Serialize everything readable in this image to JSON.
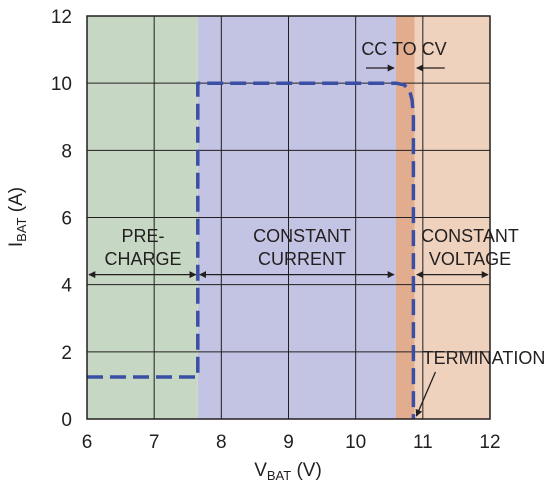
{
  "chart_data": {
    "type": "line",
    "xlabel": {
      "main": "V",
      "sub": "BAT",
      "rest": " (V)"
    },
    "ylabel": {
      "main": "I",
      "sub": "BAT",
      "rest": " (A)"
    },
    "xlim": [
      6,
      12
    ],
    "ylim": [
      0,
      12
    ],
    "x_ticks": [
      "6",
      "7",
      "8",
      "9",
      "10",
      "11",
      "12"
    ],
    "y_ticks": [
      "0",
      "2",
      "4",
      "6",
      "8",
      "10",
      "12"
    ],
    "grid": true,
    "regions": [
      {
        "id": "precharge",
        "x_from": 6.0,
        "x_to": 7.65,
        "color": "#c6d8c3"
      },
      {
        "id": "constant-current",
        "x_from": 7.65,
        "x_to": 10.6,
        "color": "#c3c3e3"
      },
      {
        "id": "cc-to-cv",
        "x_from": 10.6,
        "x_to": 10.88,
        "color": "#e2ad8f"
      },
      {
        "id": "constant-voltage",
        "x_from": 10.88,
        "x_to": 12.0,
        "color": "#eed2bd"
      }
    ],
    "series": [
      {
        "color": "#3a4fa3",
        "style": "dashed",
        "points": [
          [
            6.0,
            1.25
          ],
          [
            7.65,
            1.25
          ],
          [
            7.65,
            10.0
          ],
          [
            10.6,
            10.0
          ],
          [
            10.72,
            9.95
          ],
          [
            10.8,
            9.8
          ],
          [
            10.84,
            9.5
          ],
          [
            10.86,
            9.0
          ],
          [
            10.86,
            0.0
          ]
        ]
      }
    ],
    "annotations": {
      "precharge": [
        "PRE-",
        "CHARGE"
      ],
      "constant_current": [
        "CONSTANT",
        "CURRENT"
      ],
      "constant_voltage": [
        "CONSTANT",
        "VOLTAGE"
      ],
      "cc_to_cv": "CC TO CV",
      "termination": "TERMINATION"
    }
  }
}
